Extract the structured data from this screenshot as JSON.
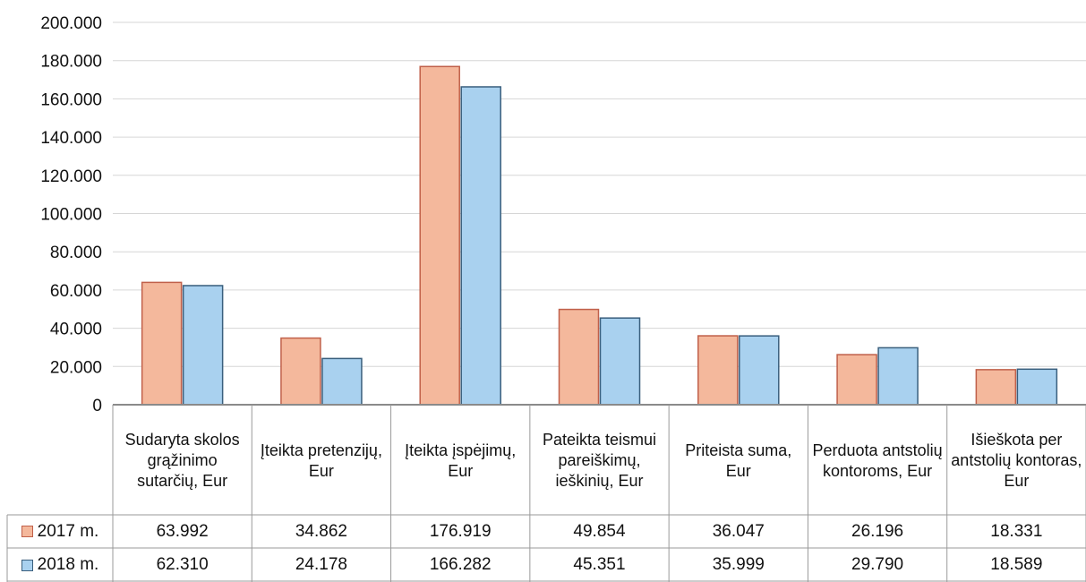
{
  "chart_data": {
    "type": "bar",
    "title": "",
    "xlabel": "",
    "ylabel": "",
    "ylim": [
      0,
      200000
    ],
    "yticks": [
      0,
      20000,
      40000,
      60000,
      80000,
      100000,
      120000,
      140000,
      160000,
      180000,
      200000
    ],
    "ytick_labels": [
      "0",
      "20.000",
      "40.000",
      "60.000",
      "80.000",
      "100.000",
      "120.000",
      "140.000",
      "160.000",
      "180.000",
      "200.000"
    ],
    "grid": true,
    "legend": "data-table",
    "categories": [
      "Sudaryta skolos grąžinimo sutarčių, Eur",
      "Įteikta pretenzijų, Eur",
      "Įteikta įspėjimų, Eur",
      "Pateikta teismui pareiškimų, ieškinių, Eur",
      "Priteista suma, Eur",
      "Perduota antstolių kontoroms, Eur",
      "Išieškota per antstolių kontoras, Eur"
    ],
    "series": [
      {
        "name": "2017 m.",
        "color": "#f4b89c",
        "values": [
          63992,
          34862,
          176919,
          49854,
          36047,
          26196,
          18331
        ],
        "value_labels": [
          "63.992",
          "34.862",
          "176.919",
          "49.854",
          "36.047",
          "26.196",
          "18.331"
        ]
      },
      {
        "name": "2018 m.",
        "color": "#a9d1ef",
        "values": [
          62310,
          24178,
          166282,
          45351,
          35999,
          29790,
          18589
        ],
        "value_labels": [
          "62.310",
          "24.178",
          "166.282",
          "45.351",
          "35.999",
          "29.790",
          "18.589"
        ]
      }
    ]
  }
}
